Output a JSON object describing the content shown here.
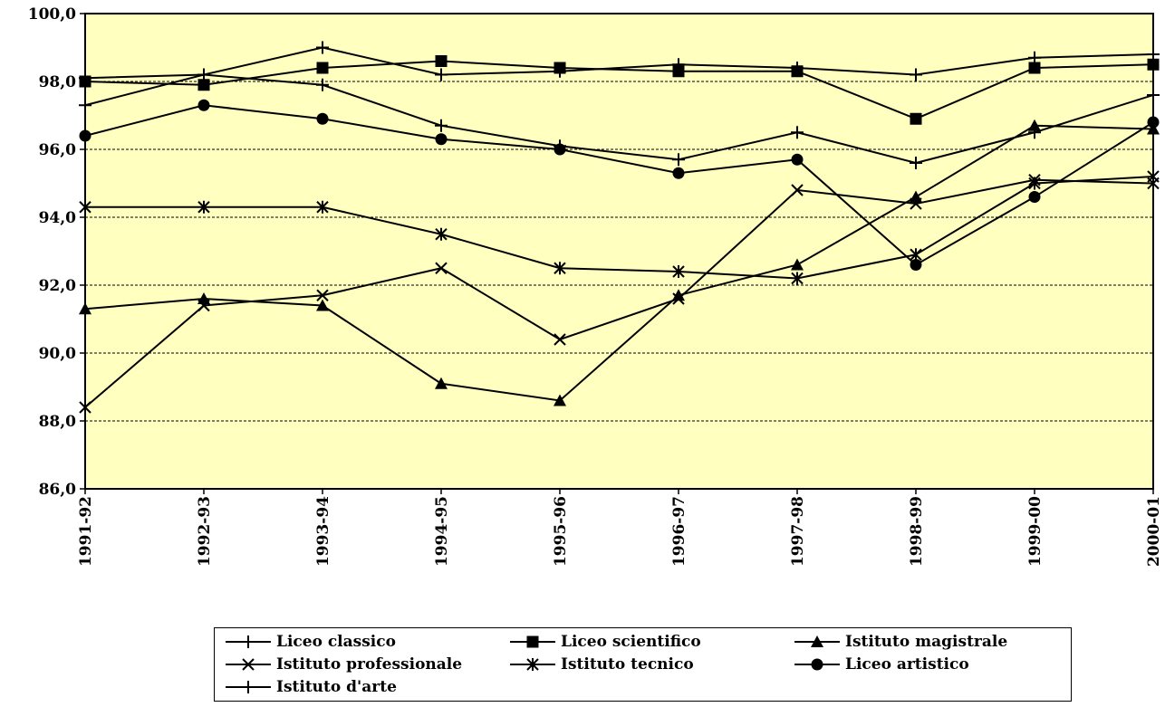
{
  "chart_data": {
    "type": "line",
    "categories": [
      "1991-92",
      "1992-93",
      "1993-94",
      "1994-95",
      "1995-96",
      "1996-97",
      "1997-98",
      "1998-99",
      "1999-00",
      "2000-01"
    ],
    "ylim": [
      86,
      100
    ],
    "ytick_step": 2,
    "ytick_labels": [
      "86,0",
      "88,0",
      "90,0",
      "92,0",
      "94,0",
      "96,0",
      "98,0",
      "100,0"
    ],
    "plot_background": "#ffffc0",
    "line_color": "#000000",
    "grid": true,
    "legend_position": "bottom",
    "series": [
      {
        "name": "Liceo classico",
        "marker": "plus",
        "values": [
          98.1,
          98.2,
          99.0,
          98.2,
          98.3,
          98.5,
          98.4,
          98.2,
          98.7,
          98.8
        ]
      },
      {
        "name": "Liceo scientifico",
        "marker": "square",
        "values": [
          98.0,
          97.9,
          98.4,
          98.6,
          98.4,
          98.3,
          98.3,
          96.9,
          98.4,
          98.5
        ]
      },
      {
        "name": "Istituto magistrale",
        "marker": "triangle",
        "values": [
          91.3,
          91.6,
          91.4,
          89.1,
          88.6,
          91.7,
          92.6,
          94.6,
          96.7,
          96.6
        ]
      },
      {
        "name": "Istituto professionale",
        "marker": "x",
        "values": [
          88.4,
          91.4,
          91.7,
          92.5,
          90.4,
          91.6,
          94.8,
          94.4,
          95.1,
          95.0
        ]
      },
      {
        "name": "Istituto tecnico",
        "marker": "asterisk",
        "values": [
          94.3,
          94.3,
          94.3,
          93.5,
          92.5,
          92.4,
          92.2,
          92.9,
          95.0,
          95.2
        ]
      },
      {
        "name": "Liceo artistico",
        "marker": "circle",
        "values": [
          96.4,
          97.3,
          96.9,
          96.3,
          96.0,
          95.3,
          95.7,
          92.6,
          94.6,
          96.8
        ]
      },
      {
        "name": "Istituto d'arte",
        "marker": "plus",
        "values": [
          97.3,
          98.2,
          97.9,
          96.7,
          96.1,
          95.7,
          96.5,
          95.6,
          96.5,
          97.6
        ]
      }
    ]
  }
}
